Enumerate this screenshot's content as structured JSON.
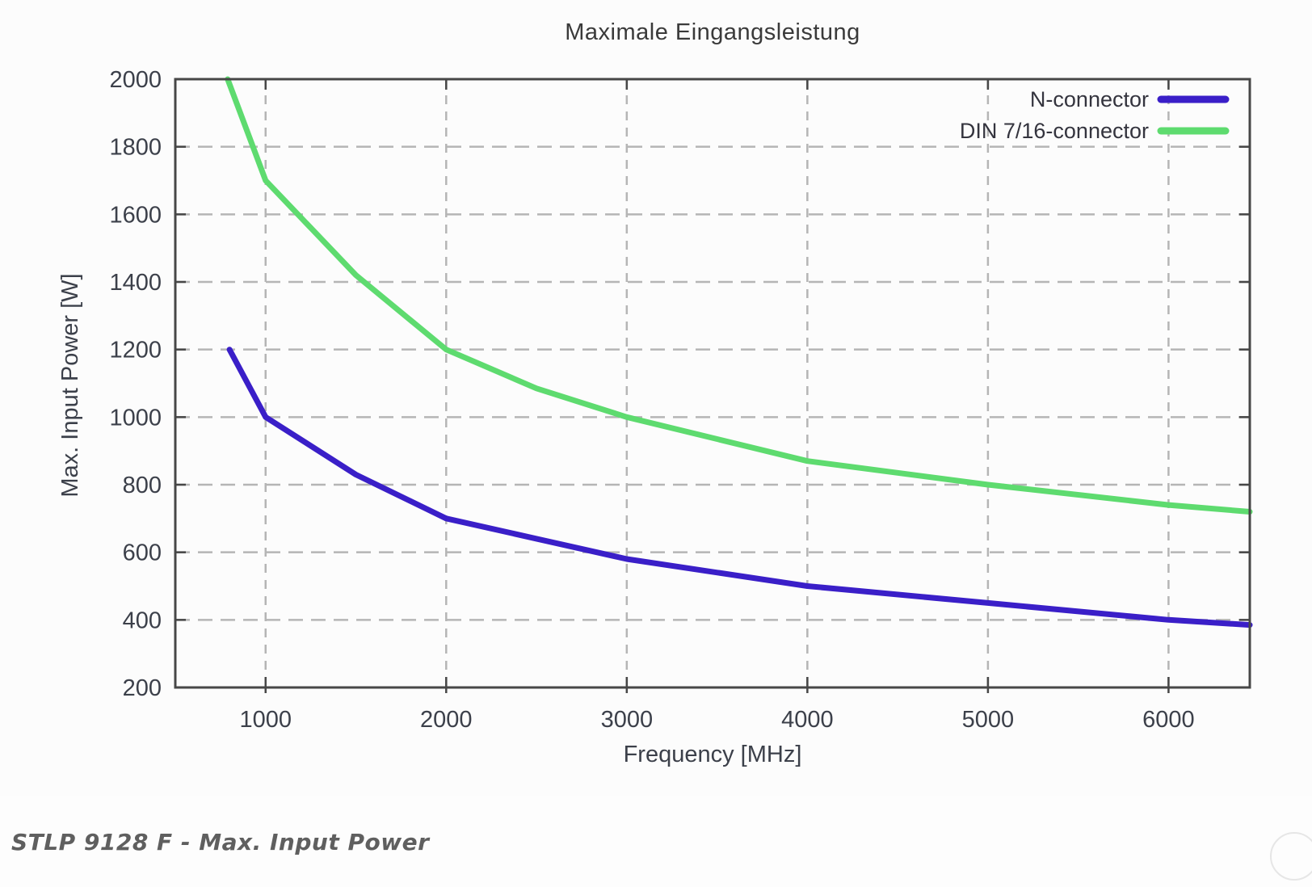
{
  "page": {
    "caption": "STLP 9128 F - Max. Input Power"
  },
  "chart_data": {
    "type": "line",
    "title": "Maximale Eingangsleistung",
    "xlabel": "Frequency [MHz]",
    "ylabel": "Max. Input Power [W]",
    "xlim": [
      500,
      6450
    ],
    "ylim": [
      200,
      2000
    ],
    "x_ticks": [
      1000,
      2000,
      3000,
      4000,
      5000,
      6000
    ],
    "y_ticks": [
      200,
      400,
      600,
      800,
      1000,
      1200,
      1400,
      1600,
      1800,
      2000
    ],
    "grid": true,
    "legend_position": "top-right-inside",
    "series": [
      {
        "name": "N-connector",
        "color": "#3a1fc8",
        "points": [
          [
            800,
            1200
          ],
          [
            1000,
            1000
          ],
          [
            1500,
            830
          ],
          [
            2000,
            700
          ],
          [
            2500,
            640
          ],
          [
            3000,
            580
          ],
          [
            4000,
            500
          ],
          [
            5000,
            450
          ],
          [
            6000,
            400
          ],
          [
            6450,
            385
          ]
        ]
      },
      {
        "name": "DIN 7/16-connector",
        "color": "#5edb6f",
        "points": [
          [
            790,
            2000
          ],
          [
            1000,
            1700
          ],
          [
            1500,
            1420
          ],
          [
            2000,
            1200
          ],
          [
            2500,
            1085
          ],
          [
            3000,
            1000
          ],
          [
            4000,
            870
          ],
          [
            5000,
            800
          ],
          [
            6000,
            740
          ],
          [
            6450,
            720
          ]
        ]
      }
    ],
    "colors": {
      "border": "#474747",
      "grid": "#b5b5b5",
      "tick": "#474747",
      "tick_label": "#3c404a",
      "legend_text": "#34343e"
    }
  }
}
